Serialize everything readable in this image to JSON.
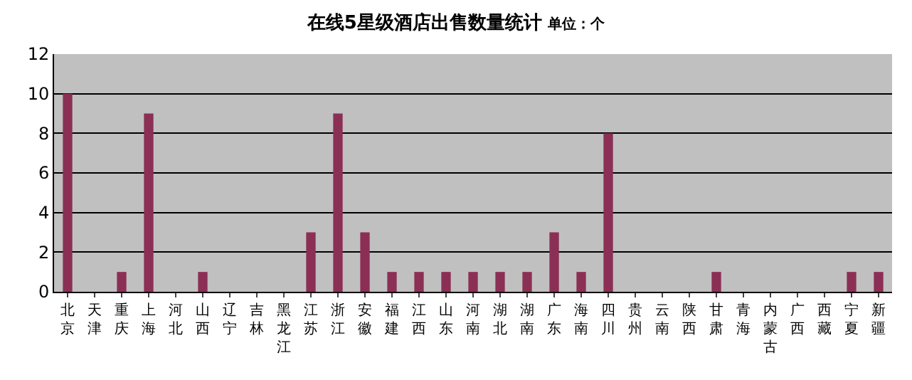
{
  "chart_data": {
    "type": "bar",
    "title": "在线5星级酒店出售数量统计",
    "subtitle": "单位：个",
    "categories": [
      "北京",
      "天津",
      "重庆",
      "上海",
      "河北",
      "山西",
      "辽宁",
      "吉林",
      "黑龙江",
      "江苏",
      "浙江",
      "安徽",
      "福建",
      "江西",
      "山东",
      "河南",
      "湖北",
      "湖南",
      "广东",
      "海南",
      "四川",
      "贵州",
      "云南",
      "陕西",
      "甘肃",
      "青海",
      "内蒙古",
      "广西",
      "西藏",
      "宁夏",
      "新疆"
    ],
    "values": [
      10,
      0,
      1,
      9,
      0,
      1,
      0,
      0,
      0,
      3,
      9,
      3,
      1,
      1,
      1,
      1,
      1,
      1,
      3,
      1,
      8,
      0,
      0,
      0,
      1,
      0,
      0,
      0,
      0,
      1,
      1
    ],
    "color": "#8b2f55",
    "ylim": [
      0,
      12
    ],
    "yticks": [
      0,
      2,
      4,
      6,
      8,
      10,
      12
    ],
    "grid": "y",
    "legend": false
  }
}
